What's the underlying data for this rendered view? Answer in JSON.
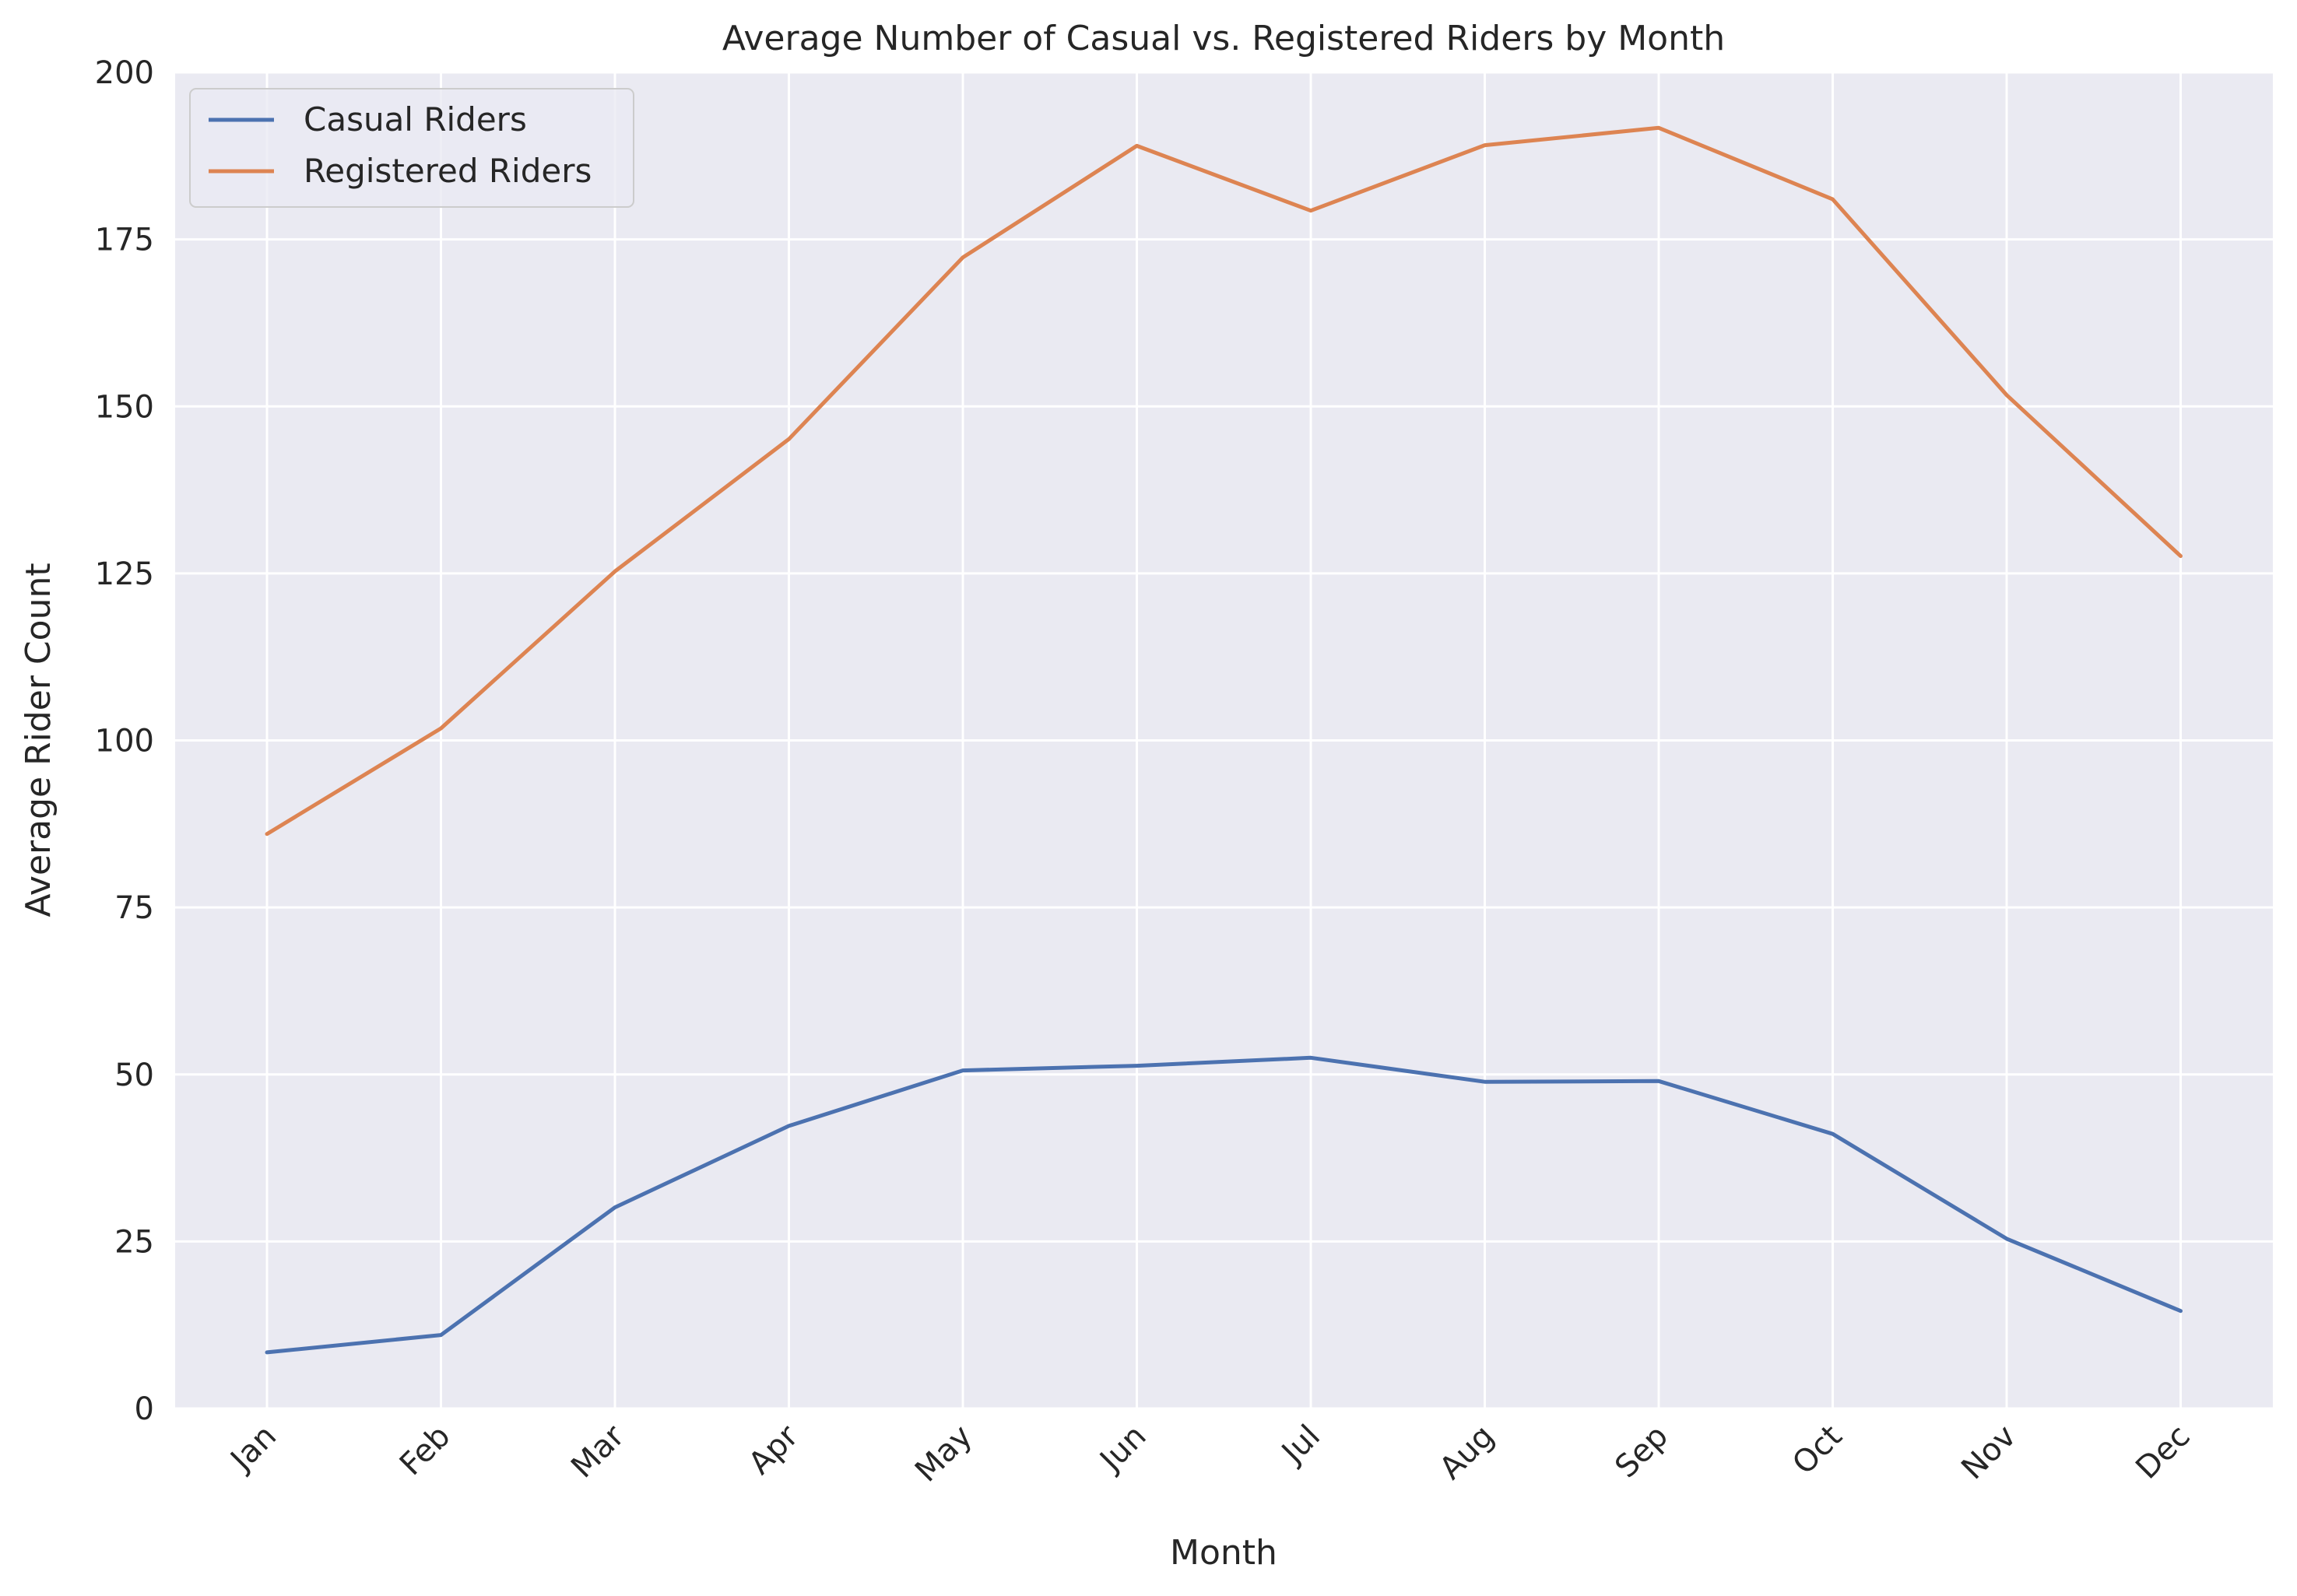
{
  "chart_data": {
    "type": "line",
    "title": "Average Number of Casual vs. Registered Riders by Month",
    "xlabel": "Month",
    "ylabel": "Average Rider Count",
    "categories": [
      "Jan",
      "Feb",
      "Mar",
      "Apr",
      "May",
      "Jun",
      "Jul",
      "Aug",
      "Sep",
      "Oct",
      "Nov",
      "Dec"
    ],
    "ylim": [
      0,
      200
    ],
    "yticks": [
      "0",
      "25",
      "50",
      "75",
      "100",
      "125",
      "150",
      "175",
      "200"
    ],
    "grid": true,
    "legend_position": "top-left",
    "series": [
      {
        "name": "Casual Riders",
        "color": "#4c72b0",
        "values": [
          8.4,
          11.0,
          30.1,
          42.3,
          50.6,
          51.3,
          52.5,
          48.9,
          49.0,
          41.1,
          25.4,
          14.6
        ]
      },
      {
        "name": "Registered Riders",
        "color": "#dd8452",
        "values": [
          86.0,
          101.8,
          125.3,
          145.1,
          172.3,
          189.0,
          179.3,
          189.1,
          191.7,
          181.0,
          151.7,
          127.6
        ]
      }
    ],
    "background_color": "#eaeaf2",
    "grid_color": "#ffffff"
  }
}
